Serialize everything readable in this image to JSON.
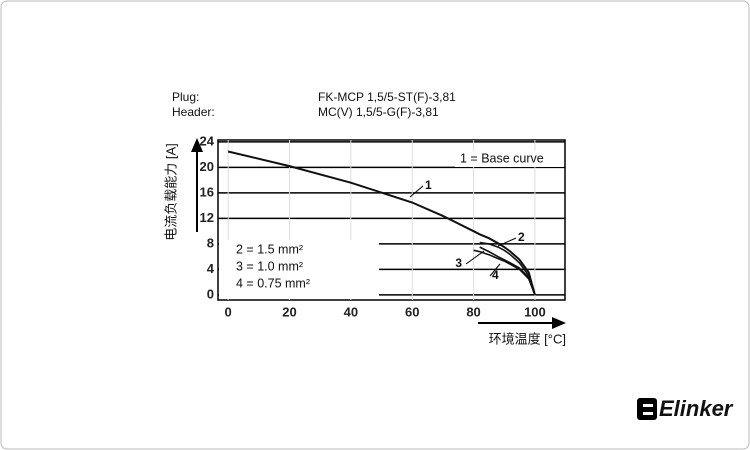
{
  "chart_data": {
    "type": "line",
    "info": [
      {
        "label": "Plug:",
        "value": "FK-MCP 1,5/5-ST(F)-3,81"
      },
      {
        "label": "Header:",
        "value": "MC(V) 1,5/5-G(F)-3,81"
      }
    ],
    "y_label": "电流负载能力 [A]",
    "x_label": "环境温度 [°C]",
    "x": [
      0,
      20,
      40,
      60,
      70,
      80,
      82,
      85,
      88,
      90,
      92,
      95,
      98,
      100
    ],
    "series": [
      {
        "name": "1 = Base curve",
        "label": "1",
        "color": "#111111",
        "values": [
          22.5,
          20.2,
          17.6,
          14.5,
          12.4,
          10,
          9.5,
          8.9,
          8.1,
          7.5,
          6.8,
          5.5,
          3.5,
          0
        ]
      },
      {
        "name": "2 = 1.5 mm²",
        "label": "2",
        "color": "#111111",
        "values": [
          null,
          null,
          null,
          null,
          null,
          null,
          8.2,
          8,
          7.5,
          7,
          6.3,
          5,
          3,
          0
        ]
      },
      {
        "name": "3 = 1.0 mm²",
        "label": "3",
        "color": "#111111",
        "values": [
          null,
          null,
          null,
          null,
          null,
          7,
          6.8,
          6.3,
          5.7,
          5.3,
          4.8,
          4,
          2.5,
          0
        ]
      },
      {
        "name": "4 = 0.75 mm²",
        "label": "4",
        "color": "#111111",
        "values": [
          null,
          null,
          null,
          null,
          null,
          null,
          7.5,
          6.8,
          6,
          5.5,
          5,
          4.2,
          2.7,
          0
        ]
      }
    ],
    "xlim": [
      -3.3,
      109.8
    ],
    "ylim": [
      -0.8,
      24.3
    ],
    "xticks": [
      0,
      20,
      40,
      60,
      80,
      100
    ],
    "yticks": [
      0,
      4,
      8,
      12,
      16,
      20,
      24
    ],
    "grid": true,
    "logo": "Elinker"
  }
}
